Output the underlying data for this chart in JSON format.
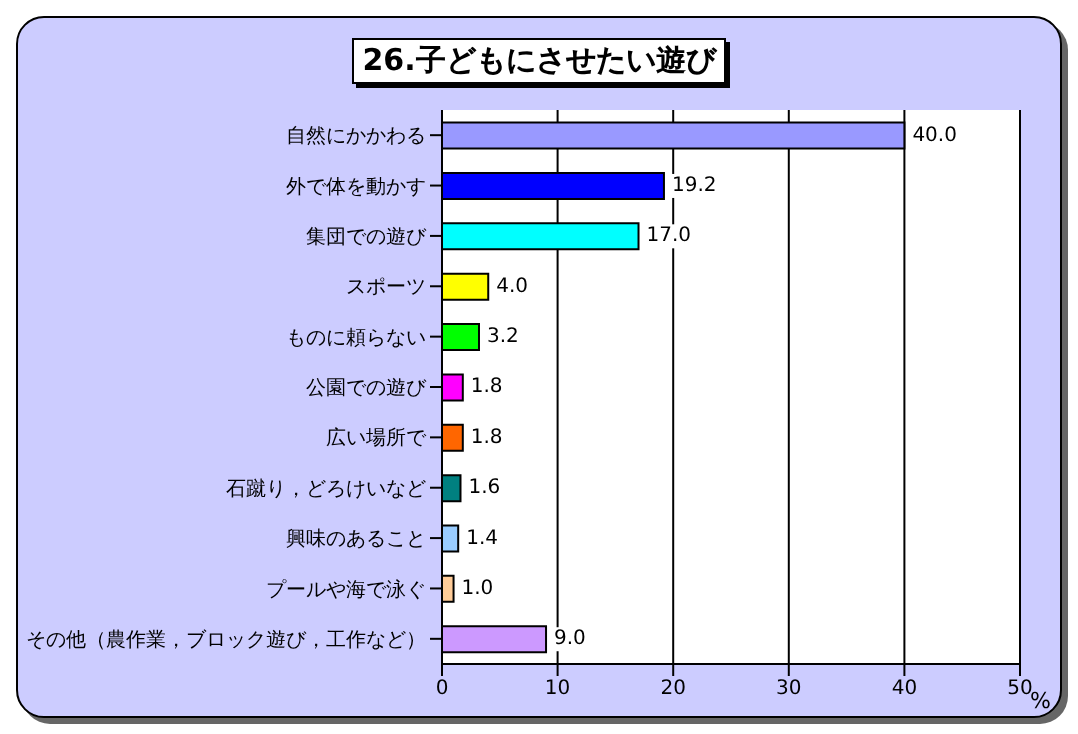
{
  "chart_data": {
    "type": "bar",
    "orientation": "horizontal",
    "title": "26.子どもにさせたい遊び",
    "xlabel": "%",
    "categories": [
      "自然にかかわる",
      "外で体を動かす",
      "集団での遊び",
      "スポーツ",
      "ものに頼らない",
      "公園での遊び",
      "広い場所で",
      "石蹴り，どろけいなど",
      "興味のあること",
      "プールや海で泳ぐ",
      "その他（農作業，ブロック遊び，工作など）"
    ],
    "values": [
      40.0,
      19.2,
      17.0,
      4.0,
      3.2,
      1.8,
      1.8,
      1.6,
      1.4,
      1.0,
      9.0
    ],
    "value_labels": [
      "40.0",
      "19.2",
      "17.0",
      "4.0",
      "3.2",
      "1.8",
      "1.8",
      "1.6",
      "1.4",
      "1.0",
      "9.0"
    ],
    "colors": [
      "#9999ff",
      "#0000ff",
      "#00ffff",
      "#ffff00",
      "#00ff00",
      "#ff00ff",
      "#ff6600",
      "#008080",
      "#99ccff",
      "#ffcc99",
      "#cc99ff"
    ],
    "xlim": [
      0,
      50
    ],
    "xticks": [
      0,
      10,
      20,
      30,
      40,
      50
    ],
    "grid": "x"
  }
}
